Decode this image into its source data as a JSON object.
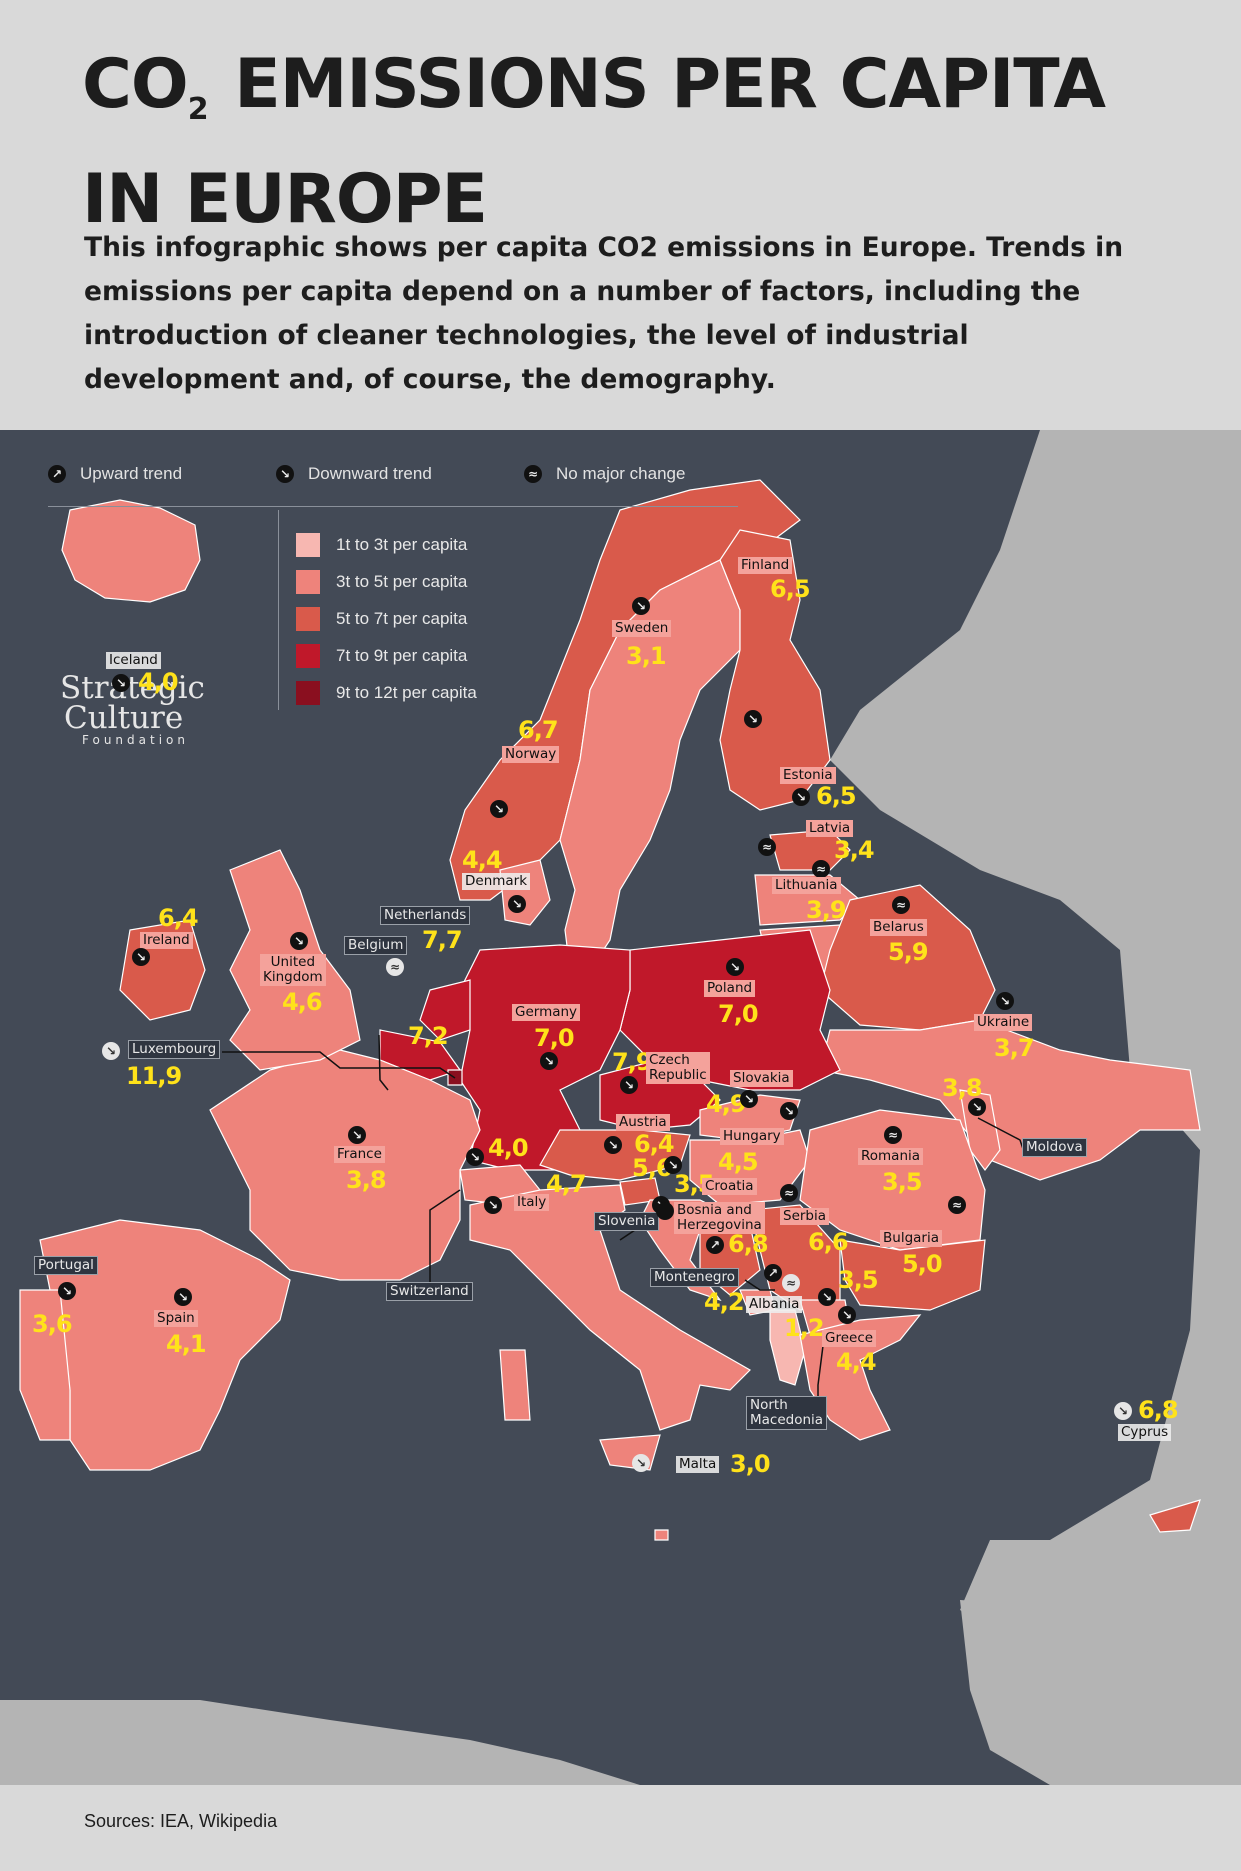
{
  "header": {
    "title_line1_pre": "CO",
    "title_sub": "2",
    "title_line1_post": " EMISSIONS PER CAPITA",
    "title_line2": "IN EUROPE",
    "description": "This infographic shows per capita CO2 emissions in Europe. Trends in emissions per capita depend on a number of factors, including the introduction of cleaner technologies, the level of industrial development and, of course, the demography."
  },
  "trend_legend": {
    "up": "Upward trend",
    "down": "Downward trend",
    "none": "No major change"
  },
  "scale_legend": [
    {
      "label": "1t to 3t per capita",
      "color": "#f7b7b1"
    },
    {
      "label": "3t to 5t per capita",
      "color": "#ee837b"
    },
    {
      "label": "5t to 7t per capita",
      "color": "#d95a4b"
    },
    {
      "label": "7t to 9t per capita",
      "color": "#c0182a"
    },
    {
      "label": "9t to 12t per capita",
      "color": "#8a0f1f"
    }
  ],
  "colors": {
    "sea": "#434a56",
    "non_europe_land": "#b4b4b4",
    "value_text": "#ffe21a"
  },
  "logo": {
    "line1": "Strategic",
    "line2": "Culture",
    "line3": "Foundation"
  },
  "countries": {
    "iceland": {
      "name": "Iceland",
      "value": "4,0",
      "trend": "down"
    },
    "norway": {
      "name": "Norway",
      "value": "6,7",
      "trend": "down"
    },
    "sweden": {
      "name": "Sweden",
      "value": "3,1",
      "trend": "down"
    },
    "finland": {
      "name": "Finland",
      "value": "6,5",
      "trend": "down"
    },
    "estonia": {
      "name": "Estonia",
      "value": "6,5",
      "trend": "down"
    },
    "latvia": {
      "name": "Latvia",
      "value": "3,4",
      "trend": "none"
    },
    "lithuania": {
      "name": "Lithuania",
      "value": "3,9",
      "trend": "none"
    },
    "belarus": {
      "name": "Belarus",
      "value": "5,9",
      "trend": "none"
    },
    "denmark": {
      "name": "Denmark",
      "value": "4,4",
      "trend": "down"
    },
    "ireland": {
      "name": "Ireland",
      "value": "6,4",
      "trend": "down"
    },
    "uk": {
      "name": "United\nKingdom",
      "value": "4,6",
      "trend": "down"
    },
    "netherlands": {
      "name": "Netherlands",
      "value": "7,7",
      "trend": "down"
    },
    "belgium": {
      "name": "Belgium",
      "value": "7,2",
      "trend": "none"
    },
    "luxembourg": {
      "name": "Luxembourg",
      "value": "11,9",
      "trend": "down"
    },
    "germany": {
      "name": "Germany",
      "value": "7,0",
      "trend": "down"
    },
    "poland": {
      "name": "Poland",
      "value": "7,0",
      "trend": "down"
    },
    "czech": {
      "name": "Czech\nRepublic",
      "value": "7,9",
      "trend": "down"
    },
    "slovakia": {
      "name": "Slovakia",
      "value": "4,9",
      "trend": "down"
    },
    "ukraine": {
      "name": "Ukraine",
      "value": "3,7",
      "trend": "down"
    },
    "moldova": {
      "name": "Moldova",
      "value": "3,8",
      "trend": "down"
    },
    "france": {
      "name": "France",
      "value": "3,8",
      "trend": "down"
    },
    "switzerland": {
      "name": "Switzerland",
      "value": "4,0",
      "trend": "down"
    },
    "austria": {
      "name": "Austria",
      "value": "6,4",
      "trend": "down"
    },
    "hungary": {
      "name": "Hungary",
      "value": "4,5",
      "trend": "down"
    },
    "romania": {
      "name": "Romania",
      "value": "3,5",
      "trend": "none"
    },
    "italy": {
      "name": "Italy",
      "value": "4,7",
      "trend": "down"
    },
    "slovenia": {
      "name": "Slovenia",
      "value": "5,6",
      "trend": "down"
    },
    "croatia": {
      "name": "Croatia",
      "value": "3,5",
      "trend": "down"
    },
    "bosnia": {
      "name": "Bosnia and\nHerzegovina",
      "value": "6,8",
      "trend": "up"
    },
    "serbia": {
      "name": "Serbia",
      "value": "6,6",
      "trend": "none"
    },
    "bulgaria": {
      "name": "Bulgaria",
      "value": "5,0",
      "trend": "none"
    },
    "montenegro": {
      "name": "Montenegro",
      "value": "4,2",
      "trend": "up"
    },
    "albania": {
      "name": "Albania",
      "value": "1,2",
      "trend": "none"
    },
    "north_macedonia": {
      "name": "North\nMacedonia",
      "value": "3,5",
      "trend": "down"
    },
    "greece": {
      "name": "Greece",
      "value": "4,4",
      "trend": "down"
    },
    "portugal": {
      "name": "Portugal",
      "value": "3,6",
      "trend": "down"
    },
    "spain": {
      "name": "Spain",
      "value": "4,1",
      "trend": "down"
    },
    "malta": {
      "name": "Malta",
      "value": "3,0",
      "trend": "down"
    },
    "cyprus": {
      "name": "Cyprus",
      "value": "6,8",
      "trend": "down"
    }
  },
  "footer": {
    "sources": "Sources: IEA, Wikipedia"
  }
}
